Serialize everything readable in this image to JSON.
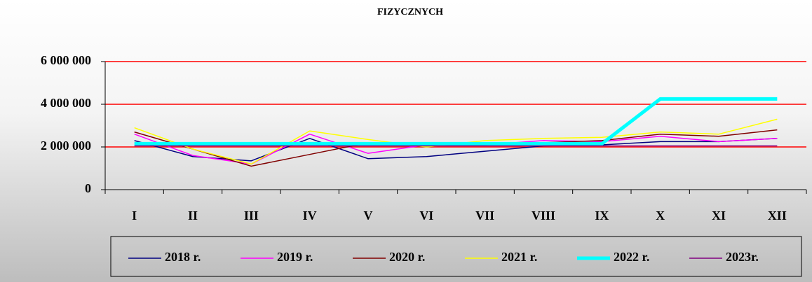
{
  "chart_data": {
    "type": "line",
    "title": "FIZYCZNYCH",
    "categories": [
      "I",
      "II",
      "III",
      "IV",
      "V",
      "VI",
      "VII",
      "VIII",
      "IX",
      "X",
      "XI",
      "XII"
    ],
    "series": [
      {
        "name": "2018 r.",
        "color": "#000080",
        "line_width": 1.5,
        "values": [
          2300000,
          1550000,
          1350000,
          2400000,
          1450000,
          1550000,
          1800000,
          2050000,
          2100000,
          2250000,
          2250000,
          2400000
        ]
      },
      {
        "name": "2019 r.",
        "color": "#ff00ff",
        "line_width": 1.5,
        "values": [
          2600000,
          1600000,
          1200000,
          2600000,
          1700000,
          2100000,
          2100000,
          2300000,
          2250000,
          2500000,
          2250000,
          2400000
        ]
      },
      {
        "name": "2020 r.",
        "color": "#800000",
        "line_width": 1.5,
        "values": [
          2700000,
          1900000,
          1100000,
          1650000,
          2200000,
          2100000,
          2100000,
          2200000,
          2300000,
          2600000,
          2500000,
          2800000
        ]
      },
      {
        "name": "2021 r.",
        "color": "#ffff00",
        "line_width": 1.5,
        "values": [
          2900000,
          1900000,
          1200000,
          2750000,
          2350000,
          2000000,
          2300000,
          2400000,
          2450000,
          2700000,
          2600000,
          3300000
        ]
      },
      {
        "name": "2022 r.",
        "color": "#00ffff",
        "line_width": 5,
        "values": [
          2150000,
          2150000,
          2150000,
          2150000,
          2150000,
          2150000,
          2150000,
          2150000,
          2150000,
          4250000,
          4250000,
          4250000
        ]
      },
      {
        "name": "2023r.",
        "color": "#800080",
        "line_width": 1.5,
        "values": [
          2050000,
          2050000,
          2050000,
          2050000,
          2050000,
          2050000,
          2050000,
          2050000,
          2050000,
          2050000,
          2050000,
          2050000
        ]
      }
    ],
    "ylim": [
      0,
      6000000
    ],
    "yticks": [
      0,
      {
        "value": 2000000,
        "label": "2 000 000"
      },
      {
        "value": 4000000,
        "label": "4 000 000"
      },
      {
        "value": 6000000,
        "label": "6 000 000"
      }
    ],
    "grid": true,
    "grid_color": "#ff0000",
    "legend": "bottom"
  }
}
